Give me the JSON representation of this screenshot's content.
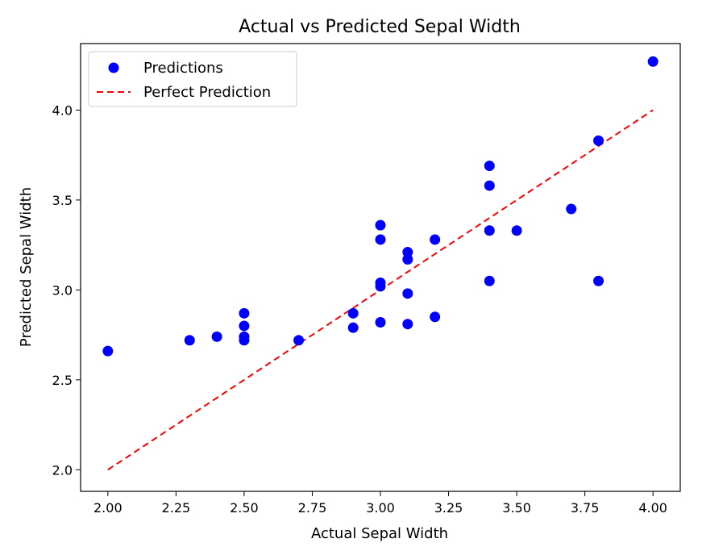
{
  "chart_data": {
    "type": "scatter",
    "title": "Actual vs Predicted Sepal Width",
    "xlabel": "Actual Sepal Width",
    "ylabel": "Predicted Sepal Width",
    "xlim": [
      1.9,
      4.1
    ],
    "ylim": [
      1.88,
      4.37
    ],
    "xticks": [
      2.0,
      2.25,
      2.5,
      2.75,
      3.0,
      3.25,
      3.5,
      3.75,
      4.0
    ],
    "xtick_labels": [
      "2.00",
      "2.25",
      "2.50",
      "2.75",
      "3.00",
      "3.25",
      "3.50",
      "3.75",
      "4.00"
    ],
    "yticks": [
      2.0,
      2.5,
      3.0,
      3.5,
      4.0
    ],
    "ytick_labels": [
      "2.0",
      "2.5",
      "3.0",
      "3.5",
      "4.0"
    ],
    "grid": false,
    "legend_position": "top-left",
    "series": [
      {
        "name": "Predictions",
        "kind": "scatter",
        "color": "#0000ff",
        "points": [
          [
            2.0,
            2.66
          ],
          [
            2.3,
            2.72
          ],
          [
            2.4,
            2.74
          ],
          [
            2.5,
            2.87
          ],
          [
            2.5,
            2.8
          ],
          [
            2.5,
            2.74
          ],
          [
            2.5,
            2.72
          ],
          [
            2.7,
            2.72
          ],
          [
            2.9,
            2.87
          ],
          [
            2.9,
            2.79
          ],
          [
            3.0,
            3.36
          ],
          [
            3.0,
            3.28
          ],
          [
            3.0,
            3.04
          ],
          [
            3.0,
            3.02
          ],
          [
            3.0,
            2.82
          ],
          [
            3.1,
            3.21
          ],
          [
            3.1,
            3.17
          ],
          [
            3.1,
            2.98
          ],
          [
            3.1,
            2.81
          ],
          [
            3.2,
            3.28
          ],
          [
            3.2,
            2.85
          ],
          [
            3.4,
            3.69
          ],
          [
            3.4,
            3.58
          ],
          [
            3.4,
            3.33
          ],
          [
            3.4,
            3.05
          ],
          [
            3.5,
            3.33
          ],
          [
            3.7,
            3.45
          ],
          [
            3.8,
            3.83
          ],
          [
            3.8,
            3.05
          ],
          [
            4.0,
            4.27
          ]
        ]
      },
      {
        "name": "Perfect Prediction",
        "kind": "line",
        "style": "dashed",
        "color": "#ff0000",
        "points": [
          [
            2.0,
            2.0
          ],
          [
            4.0,
            4.0
          ]
        ]
      }
    ]
  }
}
